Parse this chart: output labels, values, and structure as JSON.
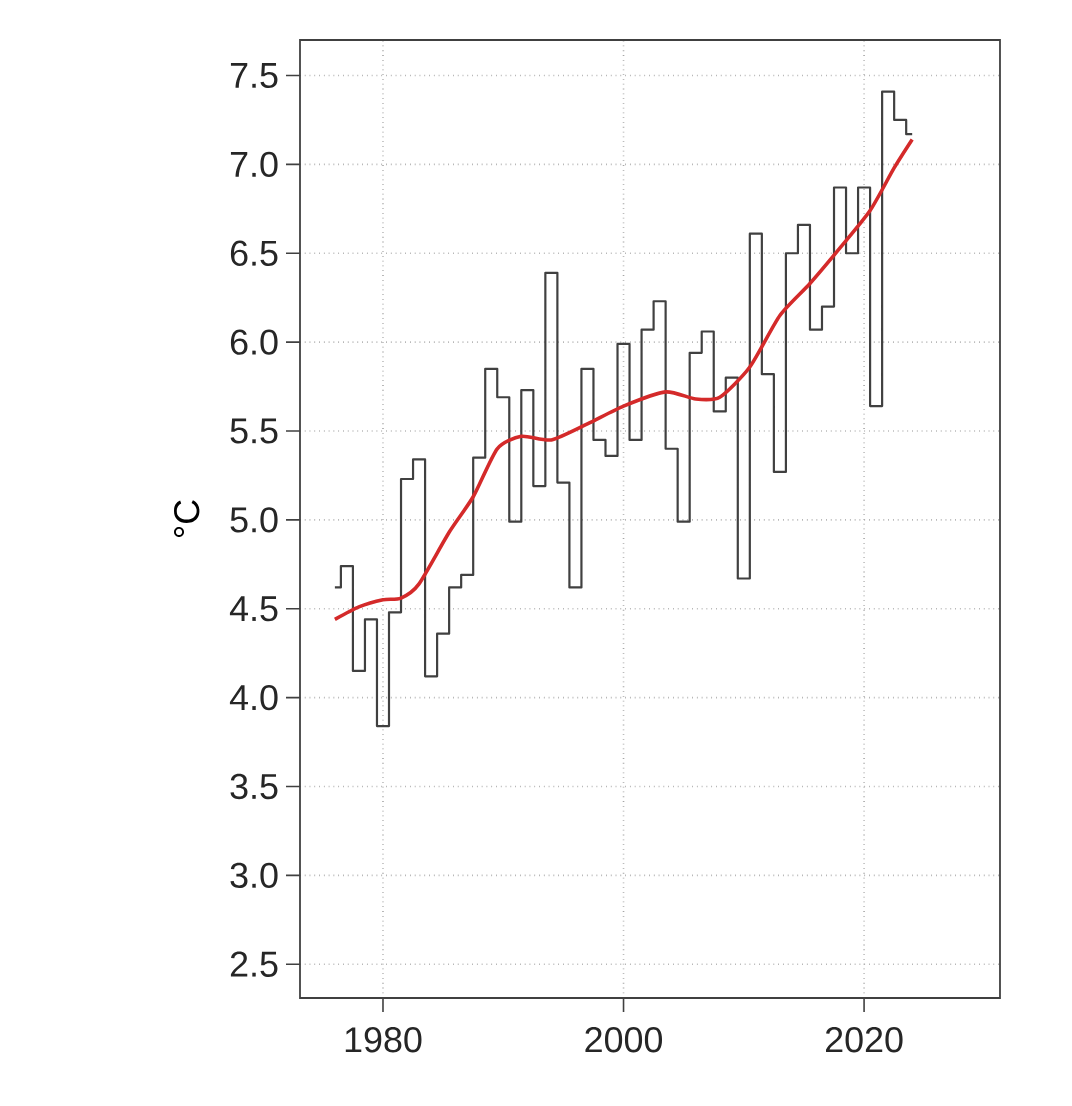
{
  "chart_data": {
    "type": "step",
    "ylabel": "°C",
    "xlim": [
      1973.1,
      2031.3
    ],
    "ylim": [
      2.31,
      7.7
    ],
    "xticks": [
      1980,
      2000,
      2020
    ],
    "yticks": [
      {
        "value": 2.5,
        "label": "2.5"
      },
      {
        "value": 3,
        "label": "3.0"
      },
      {
        "value": 3.5,
        "label": "3.5"
      },
      {
        "value": 4,
        "label": "4.0"
      },
      {
        "value": 4.5,
        "label": "4.5"
      },
      {
        "value": 5,
        "label": "5.0"
      },
      {
        "value": 5.5,
        "label": "5.5"
      },
      {
        "value": 6,
        "label": "6.0"
      },
      {
        "value": 6.5,
        "label": "6.5"
      },
      {
        "value": 7,
        "label": "7.0"
      },
      {
        "value": 7.5,
        "label": "7.5"
      }
    ],
    "grid": true,
    "marker": "none",
    "series": [
      {
        "color": "#404040",
        "x": [
          1976,
          1977,
          1978,
          1979,
          1980,
          1981,
          1982,
          1983,
          1984,
          1985,
          1986,
          1987,
          1988,
          1989,
          1990,
          1991,
          1992,
          1993,
          1994,
          1995,
          1996,
          1997,
          1998,
          1999,
          2000,
          2001,
          2002,
          2003,
          2004,
          2005,
          2006,
          2007,
          2008,
          2009,
          2010,
          2011,
          2012,
          2013,
          2014,
          2015,
          2016,
          2017,
          2018,
          2019,
          2020,
          2021,
          2022,
          2023,
          2024
        ],
        "values": [
          4.62,
          4.74,
          4.15,
          4.44,
          3.84,
          4.48,
          5.23,
          5.34,
          4.12,
          4.36,
          4.62,
          4.69,
          5.35,
          5.85,
          5.69,
          4.99,
          5.73,
          5.19,
          6.39,
          5.21,
          4.62,
          5.85,
          5.45,
          5.36,
          5.99,
          5.45,
          6.07,
          6.23,
          5.4,
          4.99,
          5.94,
          6.06,
          5.61,
          5.8,
          4.67,
          6.61,
          5.82,
          5.27,
          6.5,
          6.66,
          6.07,
          6.2,
          6.87,
          6.5,
          6.87,
          5.64,
          7.41,
          7.25,
          7.17
        ]
      },
      {
        "type": "line",
        "color": "#d42a2a",
        "x": [
          1976,
          1978,
          1980,
          1981.5,
          1983,
          1985.5,
          1987.5,
          1989.5,
          1991.5,
          1994,
          1997,
          2000,
          2003.5,
          2006,
          2008,
          2010.5,
          2013,
          2015.5,
          2018,
          2020.5,
          2022.5,
          2024
        ],
        "values": [
          4.44,
          4.51,
          4.55,
          4.56,
          4.64,
          4.93,
          5.13,
          5.4,
          5.47,
          5.45,
          5.54,
          5.64,
          5.72,
          5.68,
          5.69,
          5.86,
          6.15,
          6.33,
          6.53,
          6.74,
          6.98,
          7.14
        ]
      }
    ]
  }
}
